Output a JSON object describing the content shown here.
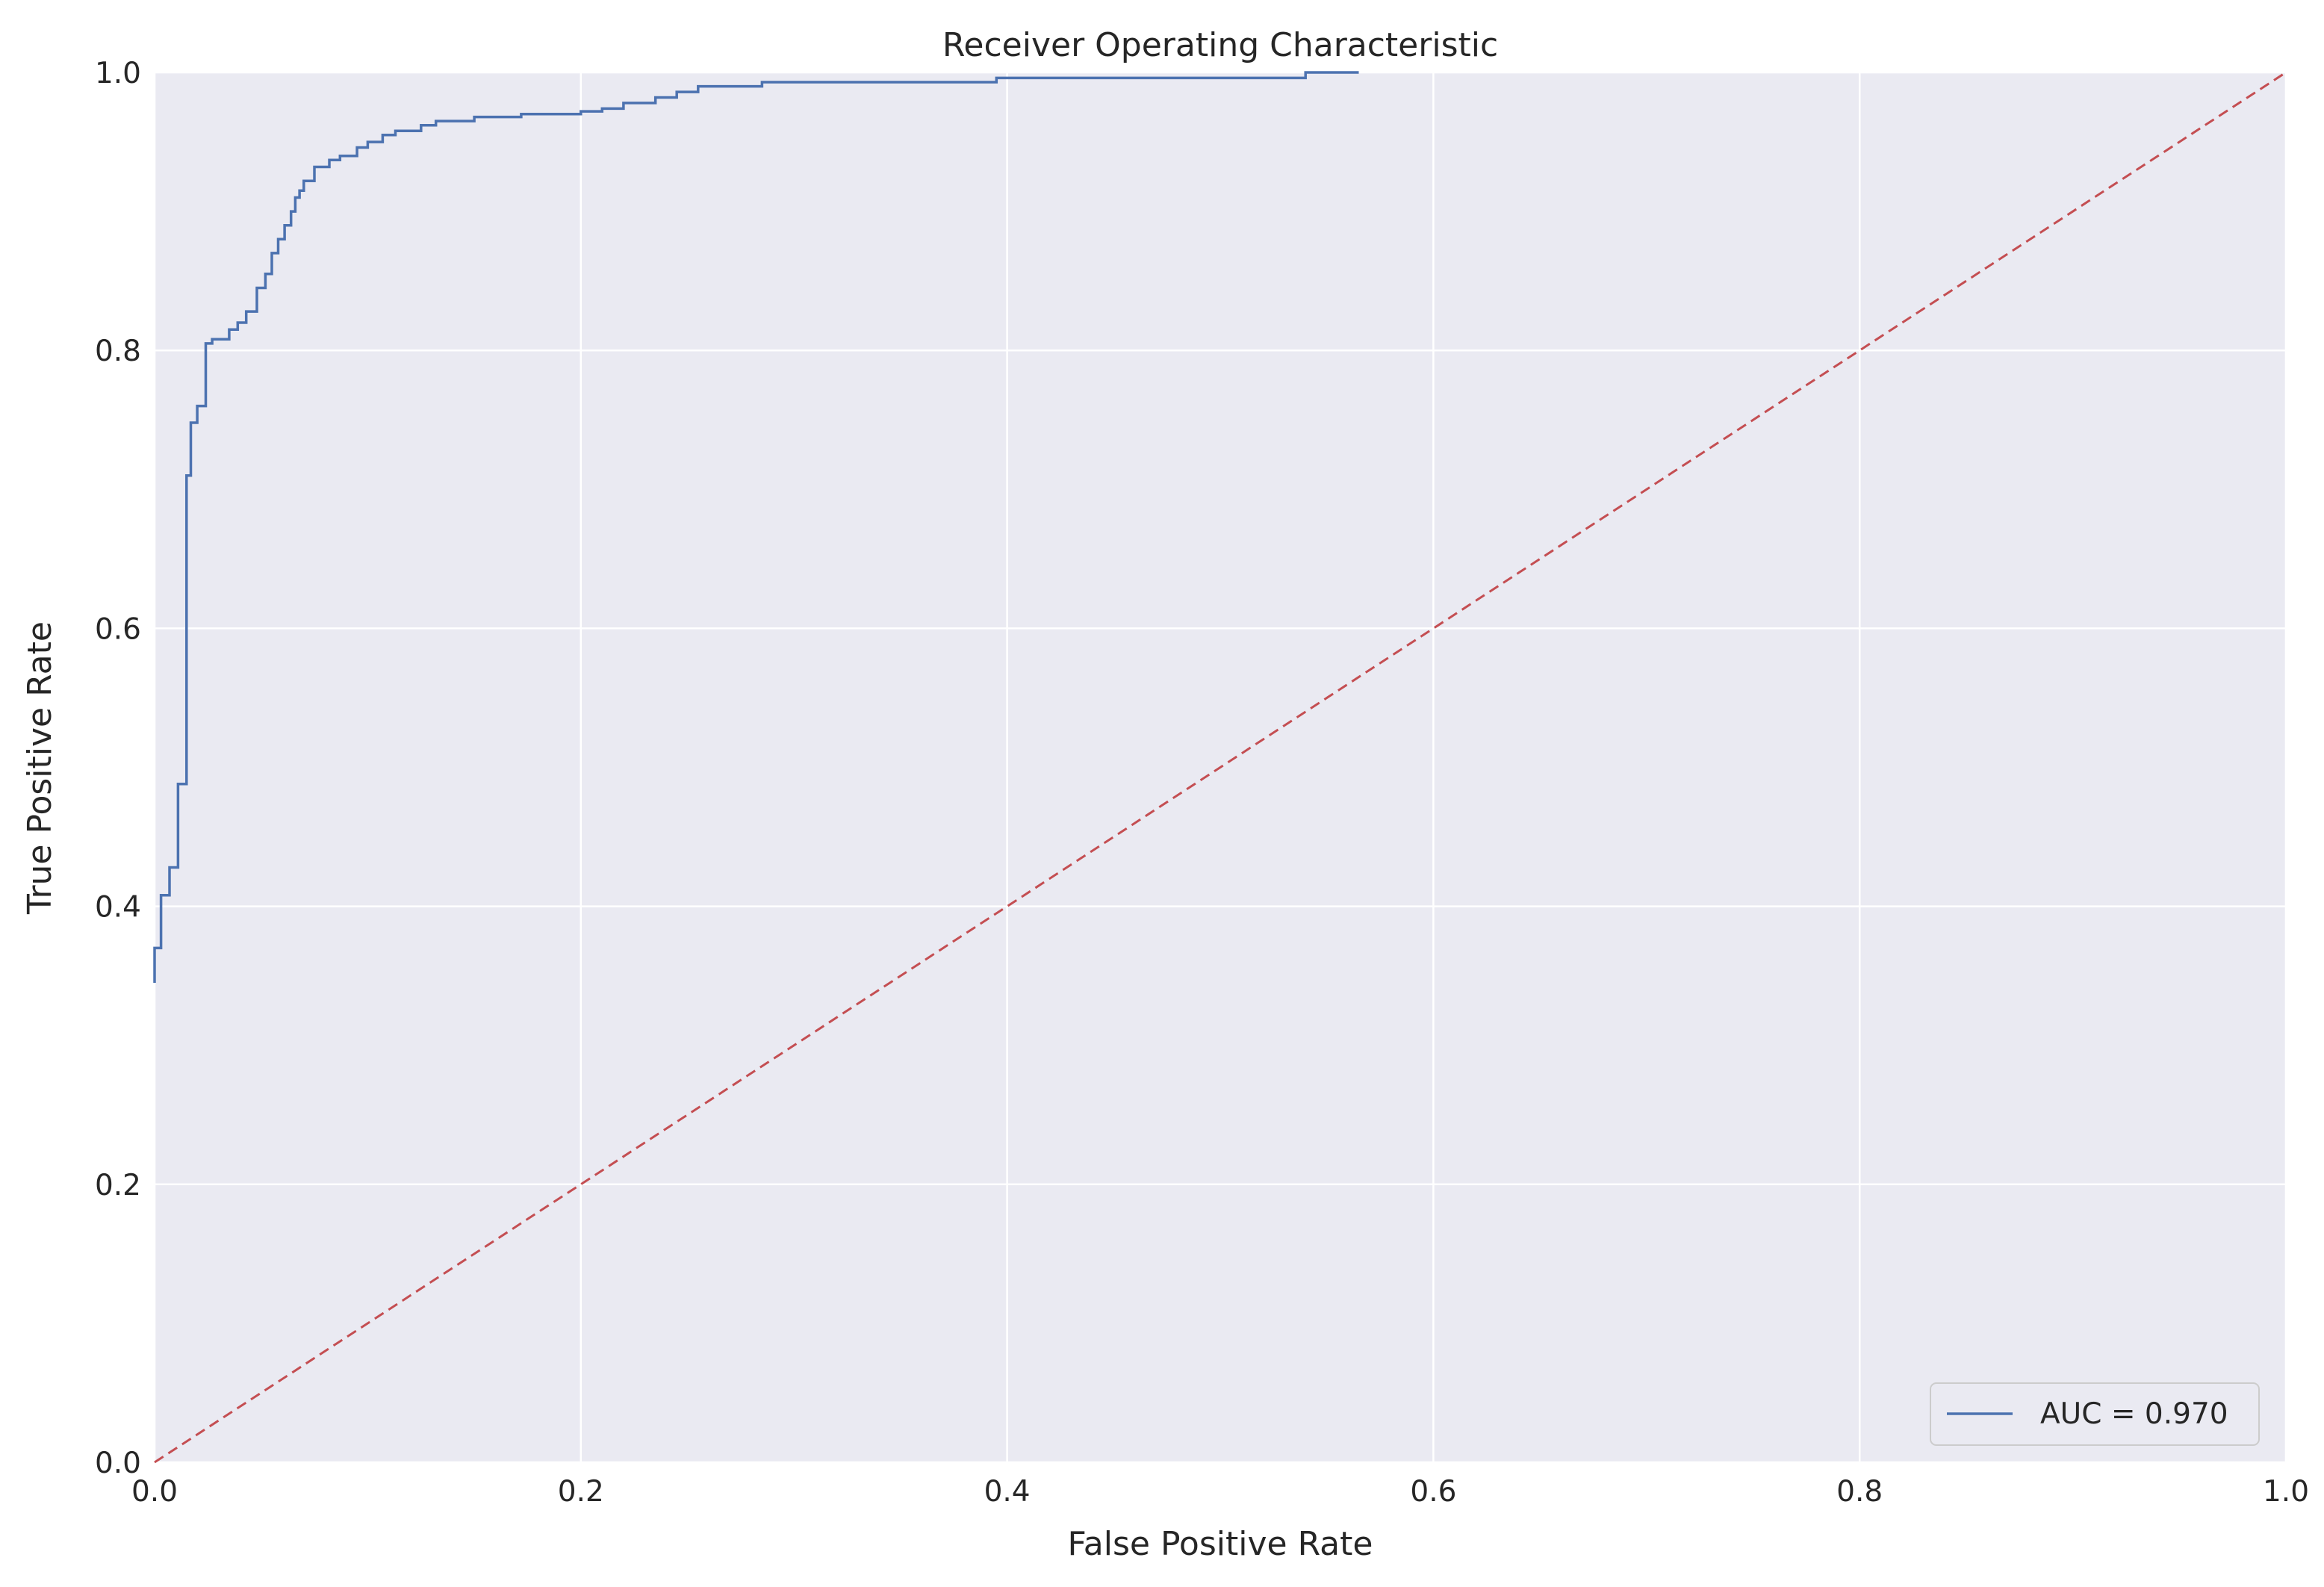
{
  "chart_data": {
    "type": "line",
    "title": "Receiver Operating Characteristic",
    "xlabel": "False Positive Rate",
    "ylabel": "True Positive Rate",
    "xlim": [
      0.0,
      1.0
    ],
    "ylim": [
      0.0,
      1.0
    ],
    "x_ticks": [
      "0.0",
      "0.2",
      "0.4",
      "0.6",
      "0.8",
      "1.0"
    ],
    "y_ticks": [
      "0.0",
      "0.2",
      "0.4",
      "0.6",
      "0.8",
      "1.0"
    ],
    "grid": true,
    "legend_placement": "lower-right",
    "colors": {
      "plot_background": "#eaeaf2",
      "grid": "#ffffff",
      "roc_curve": "#4c72b0",
      "diagonal": "#c44e52"
    },
    "series": [
      {
        "name": "AUC = 0.970",
        "style": "solid",
        "color": "#4c72b0",
        "x": [
          0.0,
          0.0,
          0.003,
          0.003,
          0.007,
          0.007,
          0.011,
          0.011,
          0.015,
          0.015,
          0.017,
          0.017,
          0.02,
          0.02,
          0.024,
          0.024,
          0.027,
          0.027,
          0.035,
          0.035,
          0.039,
          0.039,
          0.043,
          0.043,
          0.048,
          0.048,
          0.052,
          0.052,
          0.055,
          0.055,
          0.058,
          0.058,
          0.061,
          0.061,
          0.064,
          0.064,
          0.066,
          0.066,
          0.068,
          0.068,
          0.07,
          0.07,
          0.075,
          0.075,
          0.082,
          0.082,
          0.087,
          0.087,
          0.095,
          0.095,
          0.1,
          0.1,
          0.107,
          0.107,
          0.113,
          0.113,
          0.125,
          0.125,
          0.132,
          0.132,
          0.15,
          0.15,
          0.172,
          0.172,
          0.2,
          0.2,
          0.21,
          0.21,
          0.22,
          0.22,
          0.235,
          0.235,
          0.245,
          0.245,
          0.255,
          0.255,
          0.285,
          0.285,
          0.395,
          0.395,
          0.54,
          0.54,
          0.565
        ],
        "y": [
          0.345,
          0.37,
          0.37,
          0.408,
          0.408,
          0.428,
          0.428,
          0.488,
          0.488,
          0.71,
          0.71,
          0.748,
          0.748,
          0.76,
          0.76,
          0.805,
          0.805,
          0.808,
          0.808,
          0.815,
          0.815,
          0.82,
          0.82,
          0.828,
          0.828,
          0.845,
          0.845,
          0.855,
          0.855,
          0.87,
          0.87,
          0.88,
          0.88,
          0.89,
          0.89,
          0.9,
          0.9,
          0.91,
          0.91,
          0.915,
          0.915,
          0.922,
          0.922,
          0.932,
          0.932,
          0.937,
          0.937,
          0.94,
          0.94,
          0.946,
          0.946,
          0.95,
          0.95,
          0.955,
          0.955,
          0.958,
          0.958,
          0.962,
          0.962,
          0.965,
          0.965,
          0.968,
          0.968,
          0.97,
          0.97,
          0.972,
          0.972,
          0.974,
          0.974,
          0.978,
          0.978,
          0.982,
          0.982,
          0.986,
          0.986,
          0.99,
          0.99,
          0.993,
          0.993,
          0.996,
          0.996,
          1.0,
          1.0
        ]
      },
      {
        "name": "",
        "style": "dashed",
        "color": "#c44e52",
        "x": [
          0.0,
          1.0
        ],
        "y": [
          0.0,
          1.0
        ]
      }
    ],
    "legend": [
      "AUC = 0.970"
    ]
  }
}
